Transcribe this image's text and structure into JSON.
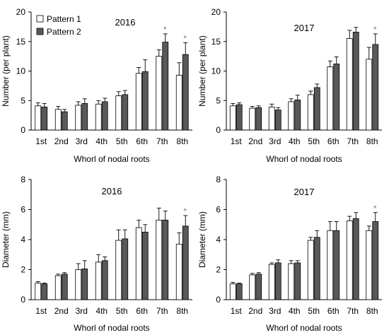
{
  "colors": {
    "pattern1": "#ffffff",
    "pattern2": "#595959",
    "axis": "#000000",
    "star": "#808080"
  },
  "chart_data": [
    {
      "type": "bar",
      "title": "2016",
      "xlabel": "Whorl of nodal roots",
      "ylabel": "Number (per plant)",
      "categories": [
        "1st",
        "2nd",
        "3rd",
        "4th",
        "5th",
        "6th",
        "7th",
        "8th"
      ],
      "ylim": [
        0,
        20
      ],
      "yticks": [
        "0",
        "5",
        "10",
        "15",
        "20"
      ],
      "legend_position": "top-left",
      "series": [
        {
          "name": "Pattern 1",
          "values": [
            4.1,
            3.5,
            4.2,
            4.4,
            5.8,
            9.6,
            12.5,
            9.3
          ],
          "errors": [
            0.5,
            0.5,
            0.6,
            0.6,
            0.7,
            1.0,
            1.1,
            2.1
          ]
        },
        {
          "name": "Pattern 2",
          "values": [
            3.9,
            3.1,
            4.5,
            4.8,
            6.0,
            9.9,
            14.9,
            12.8
          ],
          "errors": [
            0.6,
            0.4,
            0.8,
            0.6,
            0.7,
            2.0,
            1.4,
            2.0
          ]
        }
      ],
      "significant": [
        "8th",
        "7th"
      ],
      "significance_mark": "*"
    },
    {
      "type": "bar",
      "title": "2017",
      "xlabel": "Whorl of nodal roots",
      "ylabel": "Number (per plant)",
      "categories": [
        "1st",
        "2nd",
        "3rd",
        "4th",
        "5th",
        "6th",
        "7th",
        "8th"
      ],
      "ylim": [
        0,
        20
      ],
      "yticks": [
        "0",
        "5",
        "10",
        "15",
        "20"
      ],
      "series": [
        {
          "name": "Pattern 1",
          "values": [
            4.1,
            3.7,
            3.9,
            4.8,
            6.0,
            10.7,
            15.5,
            12.0
          ],
          "errors": [
            0.4,
            0.3,
            0.5,
            0.5,
            0.6,
            1.0,
            1.4,
            2.0
          ]
        },
        {
          "name": "Pattern 2",
          "values": [
            4.3,
            3.8,
            3.4,
            5.1,
            7.2,
            11.2,
            16.6,
            14.5
          ],
          "errors": [
            0.3,
            0.3,
            0.4,
            0.8,
            0.6,
            1.2,
            0.8,
            1.8
          ]
        }
      ],
      "significant": [
        "8th"
      ],
      "significance_mark": "*"
    },
    {
      "type": "bar",
      "title": "2016",
      "xlabel": "Whorl of nodal roots",
      "ylabel": "Diameter (mm)",
      "categories": [
        "1st",
        "2nd",
        "3rd",
        "4th",
        "5th",
        "6th",
        "7th",
        "8th"
      ],
      "ylim": [
        0,
        8
      ],
      "yticks": [
        "0",
        "2",
        "4",
        "6",
        "8"
      ],
      "series": [
        {
          "name": "Pattern 1",
          "values": [
            1.1,
            1.6,
            2.0,
            2.5,
            3.95,
            4.8,
            5.3,
            3.7
          ],
          "errors": [
            0.1,
            0.1,
            0.4,
            0.5,
            0.7,
            0.5,
            0.8,
            0.75
          ]
        },
        {
          "name": "Pattern 2",
          "values": [
            1.05,
            1.7,
            2.05,
            2.6,
            4.05,
            4.5,
            5.3,
            4.9
          ],
          "errors": [
            0.05,
            0.1,
            0.55,
            0.25,
            0.6,
            0.5,
            0.6,
            0.7
          ]
        }
      ],
      "significant": [
        "8th"
      ],
      "significance_mark": "*"
    },
    {
      "type": "bar",
      "title": "2017",
      "xlabel": "Whorl of nodal roots",
      "ylabel": "Diameter (mm)",
      "categories": [
        "1st",
        "2nd",
        "3rd",
        "4th",
        "5th",
        "6th",
        "7th",
        "8th"
      ],
      "ylim": [
        0,
        8
      ],
      "yticks": [
        "0",
        "2",
        "4",
        "6",
        "8"
      ],
      "series": [
        {
          "name": "Pattern 1",
          "values": [
            1.05,
            1.65,
            2.35,
            2.4,
            3.95,
            4.6,
            5.25,
            4.6
          ],
          "errors": [
            0.1,
            0.1,
            0.1,
            0.2,
            0.2,
            0.6,
            0.3,
            0.3
          ]
        },
        {
          "name": "Pattern 2",
          "values": [
            1.05,
            1.7,
            2.45,
            2.45,
            4.15,
            4.6,
            5.4,
            5.2
          ],
          "errors": [
            0.05,
            0.1,
            0.2,
            0.15,
            0.45,
            0.6,
            0.4,
            0.6
          ]
        }
      ],
      "significant": [
        "8th"
      ],
      "significance_mark": "*"
    }
  ]
}
